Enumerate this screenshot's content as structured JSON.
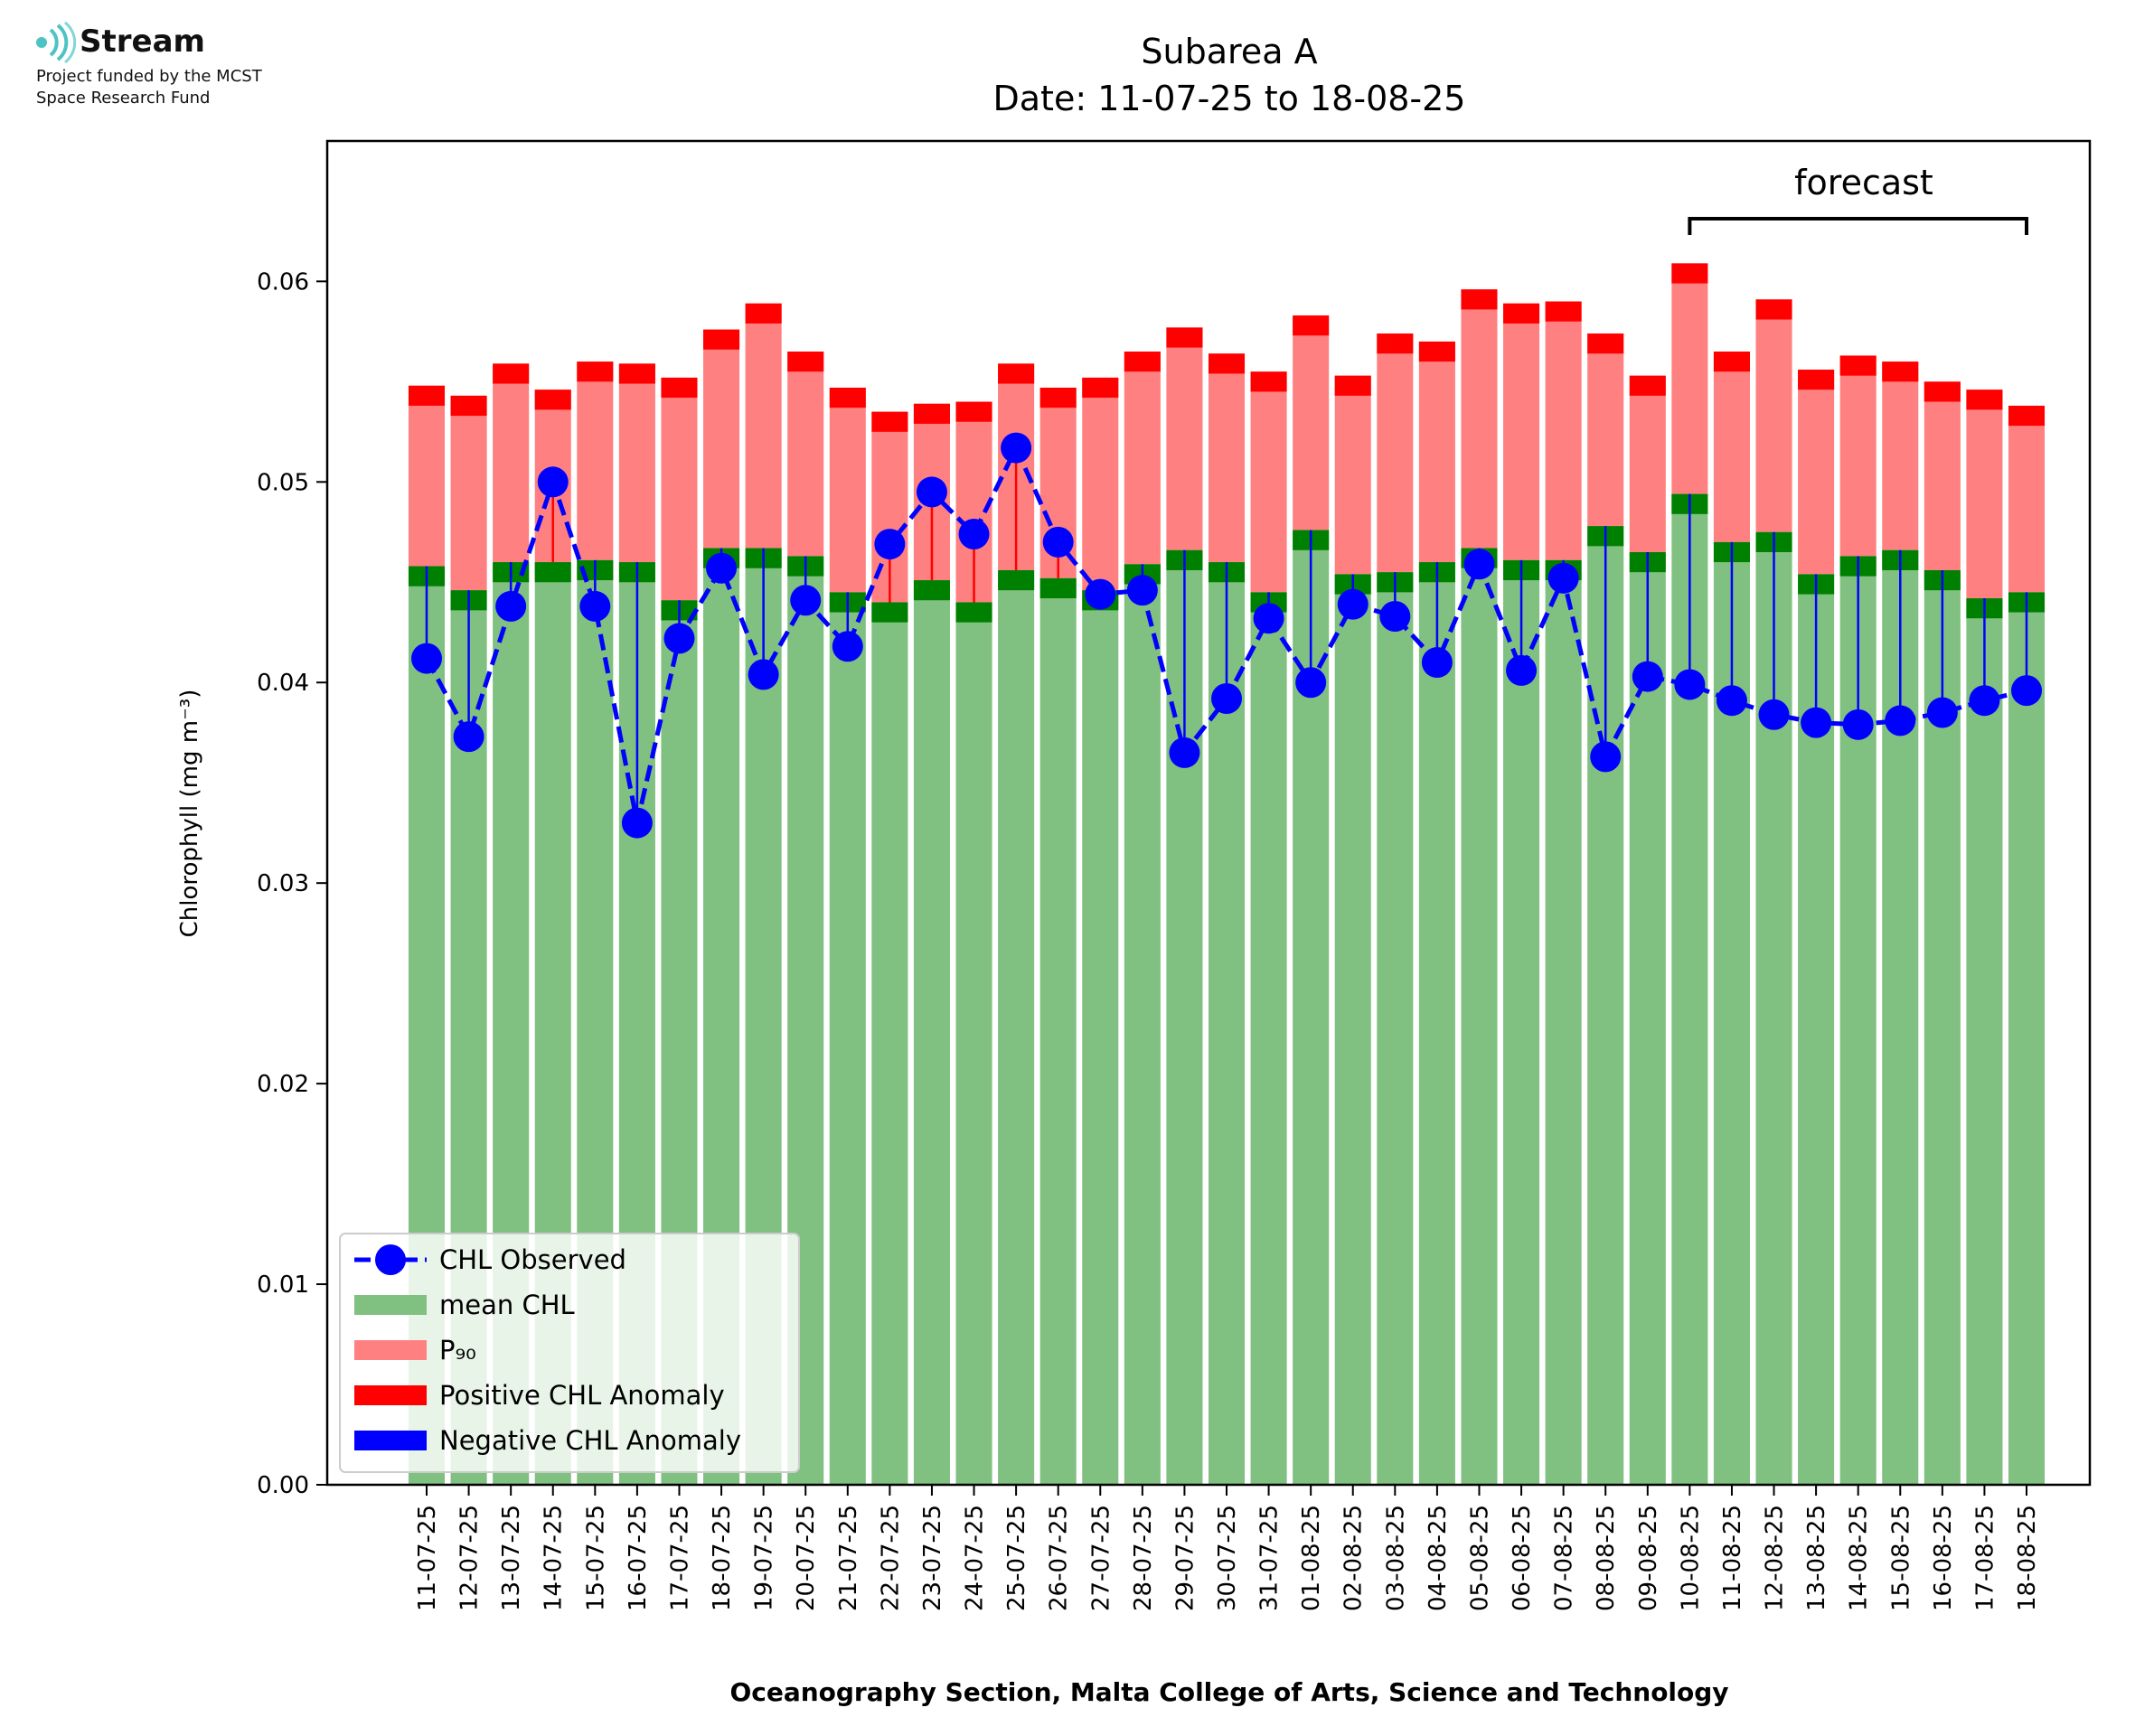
{
  "logo": {
    "icon": "stream-waves-icon",
    "brand": "Stream",
    "line1": "Project funded by the MCST",
    "line2": "Space Research Fund",
    "color": "#4ec3c3"
  },
  "chart_data": {
    "type": "bar",
    "title": "Subarea A",
    "subtitle": "Date: 11-07-25 to 18-08-25",
    "xlabel": "Oceanography Section, Malta College of Arts, Science and Technology",
    "ylabel": "Chlorophyll (mg m⁻³)",
    "ylim": [
      0,
      0.067
    ],
    "yticks": [
      "0.00",
      "0.01",
      "0.02",
      "0.03",
      "0.04",
      "0.05",
      "0.06"
    ],
    "grid": false,
    "legend_position": "lower-left",
    "forecast_label": "forecast",
    "forecast_range": [
      "10-08-25",
      "18-08-25"
    ],
    "categories": [
      "11-07-25",
      "12-07-25",
      "13-07-25",
      "14-07-25",
      "15-07-25",
      "16-07-25",
      "17-07-25",
      "18-07-25",
      "19-07-25",
      "20-07-25",
      "21-07-25",
      "22-07-25",
      "23-07-25",
      "24-07-25",
      "25-07-25",
      "26-07-25",
      "27-07-25",
      "28-07-25",
      "29-07-25",
      "30-07-25",
      "31-07-25",
      "01-08-25",
      "02-08-25",
      "03-08-25",
      "04-08-25",
      "05-08-25",
      "06-08-25",
      "07-08-25",
      "08-08-25",
      "09-08-25",
      "10-08-25",
      "11-08-25",
      "12-08-25",
      "13-08-25",
      "14-08-25",
      "15-08-25",
      "16-08-25",
      "17-08-25",
      "18-08-25"
    ],
    "series": [
      {
        "name": "CHL Observed",
        "color": "#0000ff",
        "values": [
          0.0412,
          0.0373,
          0.0438,
          0.05,
          0.0438,
          0.033,
          0.0422,
          0.0457,
          0.0404,
          0.0441,
          0.0418,
          0.0469,
          0.0495,
          0.0474,
          0.0517,
          0.047,
          0.0444,
          0.0446,
          0.0365,
          0.0392,
          0.0432,
          0.04,
          0.0439,
          0.0433,
          0.041,
          0.0459,
          0.0406,
          0.0452,
          0.0363,
          0.0403,
          0.0399,
          0.0391,
          0.0384,
          0.038,
          0.0379,
          0.0381,
          0.0385,
          0.0391,
          0.0396
        ]
      },
      {
        "name": "mean CHL",
        "color": "#80c080",
        "values": [
          0.0458,
          0.0446,
          0.046,
          0.046,
          0.0461,
          0.046,
          0.0441,
          0.0467,
          0.0467,
          0.0463,
          0.0445,
          0.044,
          0.0451,
          0.044,
          0.0456,
          0.0452,
          0.0446,
          0.0459,
          0.0466,
          0.046,
          0.0445,
          0.0476,
          0.0454,
          0.0455,
          0.046,
          0.0467,
          0.0461,
          0.0461,
          0.0478,
          0.0465,
          0.0494,
          0.047,
          0.0475,
          0.0454,
          0.0463,
          0.0466,
          0.0456,
          0.0442,
          0.0445
        ]
      },
      {
        "name": "P₉₀",
        "color": "#ff8080",
        "values": [
          0.0548,
          0.0543,
          0.0559,
          0.0546,
          0.056,
          0.0559,
          0.0552,
          0.0576,
          0.0589,
          0.0565,
          0.0547,
          0.0535,
          0.0539,
          0.054,
          0.0559,
          0.0547,
          0.0552,
          0.0565,
          0.0577,
          0.0564,
          0.0555,
          0.0583,
          0.0553,
          0.0574,
          0.057,
          0.0596,
          0.0589,
          0.059,
          0.0574,
          0.0553,
          0.0609,
          0.0565,
          0.0591,
          0.0556,
          0.0563,
          0.056,
          0.055,
          0.0546,
          0.0538
        ]
      }
    ],
    "legend": [
      {
        "label": "CHL Observed",
        "color": "#0000ff",
        "marker": "line-dot"
      },
      {
        "label": "mean CHL",
        "color": "#80c080",
        "marker": "patch"
      },
      {
        "label": "P₉₀",
        "color": "#ff8080",
        "marker": "patch"
      },
      {
        "label": "Positive CHL Anomaly",
        "color": "#ff0000",
        "marker": "patch"
      },
      {
        "label": "Negative CHL Anomaly",
        "color": "#0000ff",
        "marker": "patch"
      }
    ]
  }
}
